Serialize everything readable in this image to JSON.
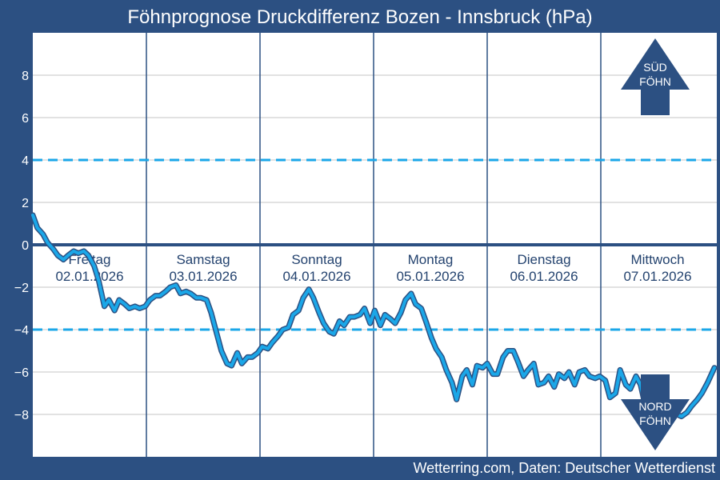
{
  "chart_data": {
    "type": "line",
    "title": "Föhnprognose Druckdifferenz Bozen - Innsbruck (hPa)",
    "footer": "Wetterring.com, Daten: Deutscher Wetterdienst",
    "xlabel": "",
    "ylabel": "",
    "ylim": [
      -10,
      10
    ],
    "yticks": [
      8,
      6,
      4,
      2,
      0,
      -2,
      -4,
      -6,
      -8
    ],
    "xlim": [
      0,
      6
    ],
    "threshold_lines": [
      4,
      -4
    ],
    "zero_line": 0,
    "days": [
      {
        "name": "Freitag",
        "date": "02.01.2026"
      },
      {
        "name": "Samstag",
        "date": "03.01.2026"
      },
      {
        "name": "Sonntag",
        "date": "04.01.2026"
      },
      {
        "name": "Montag",
        "date": "05.01.2026"
      },
      {
        "name": "Dienstag",
        "date": "06.01.2026"
      },
      {
        "name": "Mittwoch",
        "date": "07.01.2026"
      }
    ],
    "arrows": {
      "south": {
        "line1": "SÜD",
        "line2": "FÖHN"
      },
      "north": {
        "line1": "NORD",
        "line2": "FÖHN"
      }
    },
    "colors": {
      "background": "#2c5082",
      "plot": "#ffffff",
      "grid": "#d0d0d0",
      "day_separator": "#2c5082",
      "zero_line": "#2c5082",
      "threshold": "#1ba7e8",
      "series": "#1ba7e8",
      "series_outline": "#2c5082",
      "arrow": "#2c5082"
    },
    "series": [
      {
        "x": [
          0.0,
          0.04,
          0.09,
          0.13,
          0.18,
          0.22,
          0.27,
          0.31,
          0.36,
          0.4,
          0.45,
          0.49,
          0.54,
          0.58,
          0.63,
          0.67,
          0.72,
          0.76,
          0.81,
          0.85,
          0.9,
          0.94,
          0.99,
          1.03,
          1.08,
          1.12,
          1.17,
          1.21,
          1.26,
          1.3,
          1.35,
          1.39,
          1.44,
          1.48,
          1.53,
          1.57,
          1.62,
          1.66,
          1.71,
          1.75,
          1.8,
          1.84,
          1.89,
          1.93,
          1.98,
          2.02,
          2.07,
          2.11,
          2.16,
          2.2,
          2.25,
          2.29,
          2.34,
          2.38,
          2.43,
          2.47,
          2.52,
          2.56,
          2.61,
          2.65,
          2.7,
          2.74,
          2.79,
          2.83,
          2.88,
          2.92,
          2.97,
          3.01,
          3.06,
          3.1,
          3.15,
          3.19,
          3.24,
          3.28,
          3.33,
          3.37,
          3.42,
          3.46,
          3.51,
          3.55,
          3.6,
          3.64,
          3.69,
          3.73,
          3.78,
          3.82,
          3.87,
          3.91,
          3.96,
          4.0,
          4.05,
          4.09,
          4.14,
          4.18,
          4.23,
          4.27,
          4.32,
          4.36,
          4.41,
          4.45,
          4.5,
          4.54,
          4.59,
          4.63,
          4.68,
          4.72,
          4.77,
          4.81,
          4.86,
          4.9,
          4.95,
          4.99,
          5.04,
          5.08,
          5.13,
          5.17,
          5.22,
          5.26,
          5.31,
          5.35,
          5.4,
          5.44,
          5.49,
          5.53,
          5.58,
          5.62,
          5.67,
          5.71,
          5.76,
          5.8,
          5.85,
          5.89,
          5.94,
          6.0
        ],
        "y": [
          1.4,
          0.8,
          0.5,
          0.1,
          -0.2,
          -0.5,
          -0.7,
          -0.5,
          -0.3,
          -0.4,
          -0.3,
          -0.5,
          -1.0,
          -1.7,
          -2.9,
          -2.6,
          -3.1,
          -2.6,
          -2.8,
          -3.0,
          -2.9,
          -3.0,
          -2.9,
          -2.6,
          -2.4,
          -2.4,
          -2.2,
          -2.0,
          -1.9,
          -2.3,
          -2.2,
          -2.3,
          -2.5,
          -2.5,
          -2.6,
          -3.2,
          -4.2,
          -5.0,
          -5.6,
          -5.7,
          -5.1,
          -5.6,
          -5.3,
          -5.3,
          -5.1,
          -4.8,
          -4.9,
          -4.6,
          -4.3,
          -4.0,
          -3.9,
          -3.3,
          -3.1,
          -2.5,
          -2.1,
          -2.5,
          -3.2,
          -3.7,
          -4.1,
          -4.2,
          -3.6,
          -3.8,
          -3.4,
          -3.4,
          -3.3,
          -3.0,
          -3.7,
          -3.1,
          -3.8,
          -3.3,
          -3.5,
          -3.7,
          -3.2,
          -2.6,
          -2.3,
          -2.8,
          -3.0,
          -3.6,
          -4.4,
          -4.9,
          -5.3,
          -5.9,
          -6.5,
          -7.3,
          -6.2,
          -5.9,
          -6.6,
          -5.7,
          -5.8,
          -5.6,
          -6.1,
          -6.1,
          -5.3,
          -5.0,
          -5.0,
          -5.5,
          -6.2,
          -5.9,
          -5.6,
          -6.6,
          -6.5,
          -6.2,
          -6.7,
          -6.1,
          -6.3,
          -6.0,
          -6.6,
          -6.0,
          -5.9,
          -6.2,
          -6.3,
          -6.2,
          -6.4,
          -7.2,
          -7.0,
          -5.9,
          -6.6,
          -6.8,
          -6.2,
          -6.6,
          -7.8,
          -8.0,
          -8.0,
          -8.1,
          -7.9,
          -7.8,
          -8.0,
          -8.1,
          -7.9,
          -7.6,
          -7.3,
          -7.0,
          -6.5,
          -5.8
        ]
      }
    ]
  }
}
